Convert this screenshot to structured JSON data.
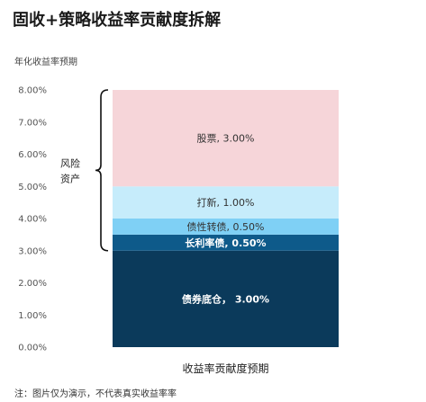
{
  "title": "固收+策略收益率贡献度拆解",
  "note": "注：图片仅为演示，不代表真实收益率率",
  "chart_data": {
    "type": "bar",
    "stacked": true,
    "ylabel": "年化收益率预期",
    "ylim": [
      0,
      8
    ],
    "yticks": [
      "0.00%",
      "1.00%",
      "2.00%",
      "3.00%",
      "4.00%",
      "5.00%",
      "6.00%",
      "7.00%",
      "8.00%"
    ],
    "categories": [
      "收益率贡献度预期"
    ],
    "segments": [
      {
        "label": "债券底仓， 3.00%",
        "value": 3.0,
        "color": "#0b3a5b",
        "text_color": "#ffffff",
        "bold": true
      },
      {
        "label": "长利率债, 0.50%",
        "value": 0.5,
        "color": "#0e5a8a",
        "text_color": "#ffffff",
        "bold": true
      },
      {
        "label": "债性转债, 0.50%",
        "value": 0.5,
        "color": "#7fd0f5",
        "text_color": "#333333",
        "bold": false
      },
      {
        "label": "打新, 1.00%",
        "value": 1.0,
        "color": "#c6ecfb",
        "text_color": "#333333",
        "bold": false
      },
      {
        "label": "股票, 3.00%",
        "value": 3.0,
        "color": "#f6d5d9",
        "text_color": "#333333",
        "bold": false
      }
    ],
    "brace": {
      "label_lines": [
        "风险",
        "资产"
      ],
      "from": 3.0,
      "to": 8.0
    },
    "grid": false
  }
}
